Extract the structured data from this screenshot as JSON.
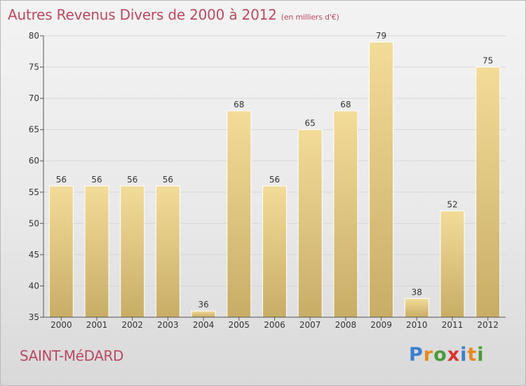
{
  "title": "Autres Revenus Divers de 2000 à 2012",
  "title_unit": "(en milliers d'€)",
  "commune": "SAINT-MéDARD",
  "logo": {
    "text": "Proxiti",
    "letter_colors": [
      "#3a7fd0",
      "#e58a1f",
      "#4a9a3a",
      "#d8342f",
      "#3a7fd0",
      "#e58a1f",
      "#4a9a3a"
    ]
  },
  "colors": {
    "title": "#b84a63",
    "bar_top": "#f3dc98",
    "bar_bottom": "#c8ad66",
    "bar_edge": "#ffffff",
    "axis": "#555555",
    "grid": "#d7d7d7"
  },
  "chart_data": {
    "type": "bar",
    "categories": [
      "2000",
      "2001",
      "2002",
      "2003",
      "2004",
      "2005",
      "2006",
      "2007",
      "2008",
      "2009",
      "2010",
      "2011",
      "2012"
    ],
    "values": [
      56,
      56,
      56,
      56,
      36,
      68,
      56,
      65,
      68,
      79,
      38,
      52,
      75
    ],
    "ylim": [
      35,
      80
    ],
    "yticks": [
      35,
      40,
      45,
      50,
      55,
      60,
      65,
      70,
      75,
      80
    ],
    "xlabel": "",
    "ylabel": "",
    "grid": true,
    "legend": "none"
  }
}
